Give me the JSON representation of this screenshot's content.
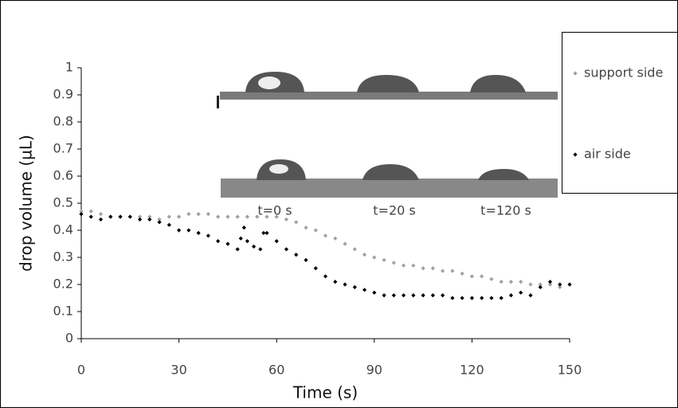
{
  "chart_data": {
    "type": "scatter",
    "xlabel": "Time (s)",
    "ylabel": "drop volume (µL)",
    "xlim": [
      0,
      150
    ],
    "xticks": [
      0,
      30,
      60,
      90,
      120,
      150
    ],
    "ylim": [
      0,
      1
    ],
    "yticks": [
      0,
      0.1,
      0.2,
      0.3,
      0.4,
      0.5,
      0.6,
      0.7,
      0.8,
      0.9,
      1
    ],
    "legend": "right",
    "annotations": [
      "t=0 s",
      "t=20 s",
      "t=120 s"
    ],
    "series": [
      {
        "name": "support side",
        "color": "#a0a0a0",
        "x": [
          0,
          3,
          6,
          9,
          12,
          15,
          18,
          21,
          24,
          27,
          30,
          33,
          36,
          39,
          42,
          45,
          48,
          51,
          54,
          57,
          60,
          63,
          66,
          69,
          72,
          75,
          78,
          81,
          84,
          87,
          90,
          93,
          96,
          99,
          102,
          105,
          108,
          111,
          114,
          117,
          120,
          123,
          126,
          129,
          132,
          135,
          138,
          141,
          144,
          147,
          150
        ],
        "values": [
          0.47,
          0.47,
          0.46,
          0.45,
          0.45,
          0.45,
          0.45,
          0.45,
          0.44,
          0.45,
          0.45,
          0.46,
          0.46,
          0.46,
          0.45,
          0.45,
          0.45,
          0.45,
          0.45,
          0.45,
          0.45,
          0.44,
          0.43,
          0.41,
          0.4,
          0.38,
          0.37,
          0.35,
          0.33,
          0.31,
          0.3,
          0.29,
          0.28,
          0.27,
          0.27,
          0.26,
          0.26,
          0.25,
          0.25,
          0.24,
          0.23,
          0.23,
          0.22,
          0.21,
          0.21,
          0.21,
          0.2,
          0.2,
          0.2,
          0.19,
          0.2
        ]
      },
      {
        "name": "air side",
        "color": "#000000",
        "x": [
          0,
          3,
          6,
          9,
          12,
          15,
          18,
          21,
          24,
          27,
          30,
          33,
          36,
          39,
          42,
          45,
          48,
          49,
          50,
          51,
          53,
          55,
          56,
          57,
          60,
          63,
          66,
          69,
          72,
          75,
          78,
          81,
          84,
          87,
          90,
          93,
          96,
          99,
          102,
          105,
          108,
          111,
          114,
          117,
          120,
          123,
          126,
          129,
          132,
          135,
          138,
          141,
          144,
          147,
          150
        ],
        "values": [
          0.46,
          0.45,
          0.44,
          0.45,
          0.45,
          0.45,
          0.44,
          0.44,
          0.43,
          0.42,
          0.4,
          0.4,
          0.39,
          0.38,
          0.36,
          0.35,
          0.33,
          0.37,
          0.41,
          0.36,
          0.34,
          0.33,
          0.39,
          0.39,
          0.36,
          0.33,
          0.31,
          0.29,
          0.26,
          0.23,
          0.21,
          0.2,
          0.19,
          0.18,
          0.17,
          0.16,
          0.16,
          0.16,
          0.16,
          0.16,
          0.16,
          0.16,
          0.15,
          0.15,
          0.15,
          0.15,
          0.15,
          0.15,
          0.16,
          0.17,
          0.16,
          0.19,
          0.21,
          0.2,
          0.2
        ]
      }
    ]
  }
}
